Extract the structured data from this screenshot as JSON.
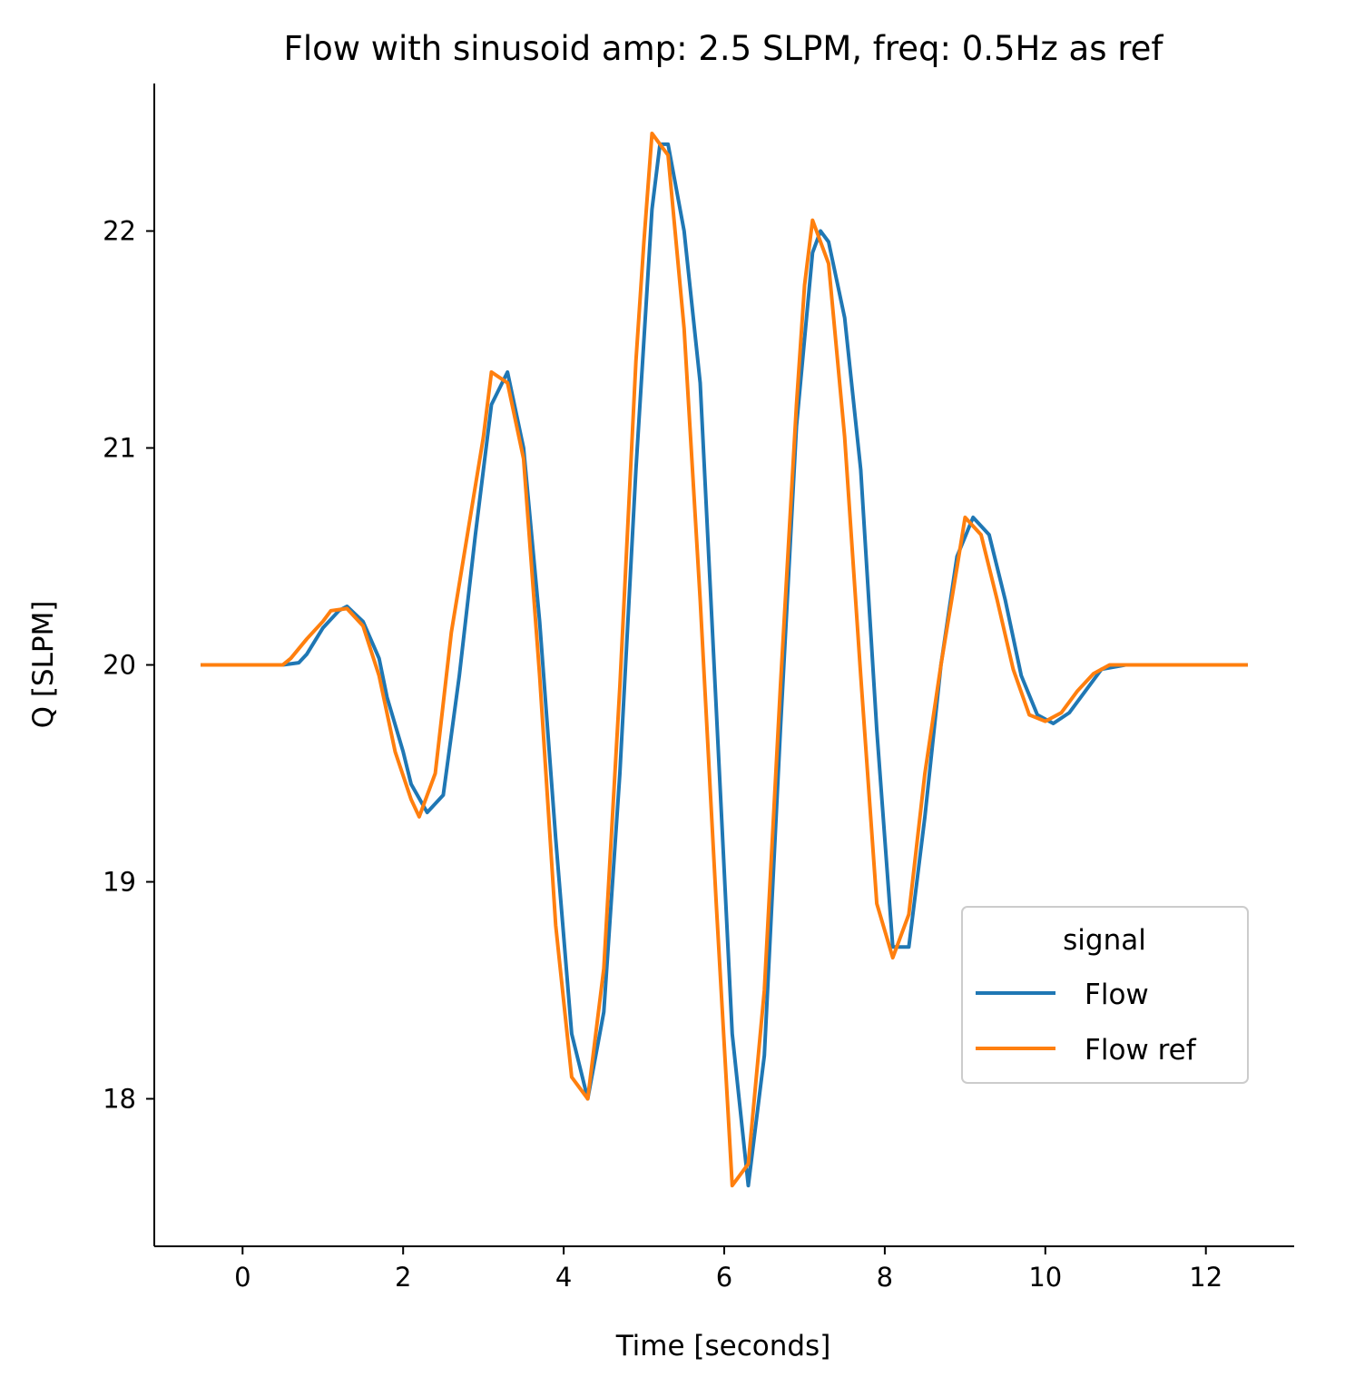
{
  "chart_data": {
    "type": "line",
    "title": "Flow with sinusoid amp: 2.5 SLPM, freq: 0.5Hz as ref",
    "xlabel": "Time [seconds]",
    "ylabel": "Q [SLPM]",
    "xlim": [
      -1.1,
      13.1
    ],
    "ylim": [
      17.32,
      22.68
    ],
    "xticks": [
      0,
      2,
      4,
      6,
      8,
      10,
      12
    ],
    "yticks": [
      18,
      19,
      20,
      21,
      22
    ],
    "grid": false,
    "legend": {
      "title": "signal",
      "placement": "lower-right"
    },
    "series": [
      {
        "name": "Flow",
        "color": "#1f77b4",
        "x": [
          -0.5,
          0.0,
          0.5,
          0.7,
          0.8,
          1.0,
          1.2,
          1.3,
          1.5,
          1.7,
          1.8,
          2.0,
          2.1,
          2.3,
          2.5,
          2.7,
          2.9,
          3.1,
          3.3,
          3.5,
          3.7,
          3.9,
          4.1,
          4.3,
          4.5,
          4.7,
          4.9,
          5.1,
          5.2,
          5.3,
          5.5,
          5.7,
          5.9,
          6.1,
          6.3,
          6.5,
          6.7,
          6.9,
          7.1,
          7.2,
          7.3,
          7.5,
          7.7,
          7.9,
          8.1,
          8.3,
          8.5,
          8.7,
          8.9,
          9.1,
          9.3,
          9.5,
          9.7,
          9.9,
          10.1,
          10.3,
          10.5,
          10.7,
          11.0,
          11.5,
          12.0,
          12.5
        ],
        "values": [
          20.0,
          20.0,
          20.0,
          20.01,
          20.05,
          20.17,
          20.25,
          20.27,
          20.2,
          20.03,
          19.85,
          19.6,
          19.45,
          19.32,
          19.4,
          19.95,
          20.6,
          21.2,
          21.35,
          21.0,
          20.2,
          19.2,
          18.3,
          18.0,
          18.4,
          19.5,
          20.9,
          22.1,
          22.4,
          22.4,
          22.0,
          21.3,
          19.8,
          18.3,
          17.6,
          18.2,
          19.7,
          21.1,
          21.9,
          22.0,
          21.95,
          21.6,
          20.9,
          19.7,
          18.7,
          18.7,
          19.3,
          20.0,
          20.5,
          20.68,
          20.6,
          20.3,
          19.95,
          19.77,
          19.73,
          19.78,
          19.88,
          19.98,
          20.0,
          20.0,
          20.0,
          20.0
        ]
      },
      {
        "name": "Flow ref",
        "color": "#ff7f0e",
        "x": [
          -0.5,
          0.0,
          0.5,
          0.6,
          0.8,
          1.0,
          1.1,
          1.3,
          1.5,
          1.7,
          1.9,
          2.1,
          2.2,
          2.4,
          2.6,
          2.8,
          3.0,
          3.1,
          3.3,
          3.5,
          3.7,
          3.9,
          4.1,
          4.3,
          4.5,
          4.7,
          4.9,
          5.0,
          5.1,
          5.3,
          5.5,
          5.7,
          5.9,
          6.1,
          6.3,
          6.5,
          6.7,
          6.9,
          7.0,
          7.1,
          7.3,
          7.5,
          7.7,
          7.9,
          8.1,
          8.3,
          8.5,
          8.7,
          8.9,
          9.0,
          9.2,
          9.4,
          9.6,
          9.8,
          10.0,
          10.2,
          10.4,
          10.6,
          10.8,
          11.0,
          11.5,
          12.0,
          12.5
        ],
        "values": [
          20.0,
          20.0,
          20.0,
          20.03,
          20.12,
          20.2,
          20.25,
          20.26,
          20.18,
          19.95,
          19.6,
          19.38,
          19.3,
          19.5,
          20.15,
          20.6,
          21.05,
          21.35,
          21.3,
          20.95,
          19.95,
          18.8,
          18.1,
          18.0,
          18.6,
          19.9,
          21.4,
          21.95,
          22.45,
          22.35,
          21.55,
          20.3,
          18.9,
          17.6,
          17.7,
          18.5,
          19.9,
          21.2,
          21.75,
          22.05,
          21.85,
          21.05,
          19.95,
          18.9,
          18.65,
          18.85,
          19.5,
          20.0,
          20.45,
          20.68,
          20.6,
          20.3,
          19.98,
          19.77,
          19.74,
          19.78,
          19.88,
          19.96,
          20.0,
          20.0,
          20.0,
          20.0,
          20.0
        ]
      }
    ]
  }
}
